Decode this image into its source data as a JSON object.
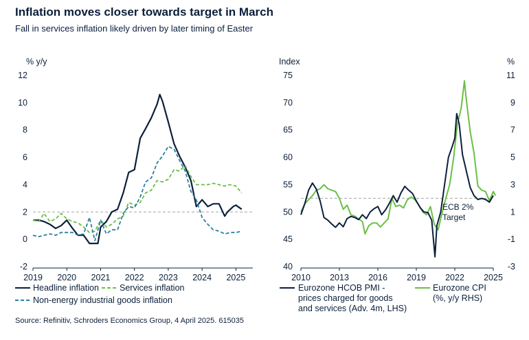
{
  "title": "Inflation moves closer towards target in March",
  "subtitle": "Fall in services inflation likely driven by later timing of Easter",
  "source": "Source: Refinitiv, Schroders Economics Group, 4 April 2025. 615035",
  "colors": {
    "navy": "#0b1f3a",
    "green": "#6abf45",
    "teal": "#2a7fa0",
    "gridline": "#b5b5b5"
  },
  "chart_data": [
    {
      "type": "line",
      "ylabel": "% y/y",
      "ylim": [
        -2,
        12
      ],
      "yticks": [
        -2,
        0,
        2,
        4,
        6,
        8,
        10,
        12
      ],
      "xlim": [
        2019,
        2025.5
      ],
      "xticks": [
        2019,
        2020,
        2021,
        2022,
        2023,
        2024,
        2025
      ],
      "reference_line": 2,
      "series": [
        {
          "name": "Headline inflation",
          "color": "#0b1f3a",
          "style": "solid",
          "x": [
            2019.0,
            2019.17,
            2019.33,
            2019.5,
            2019.67,
            2019.83,
            2020.0,
            2020.17,
            2020.33,
            2020.5,
            2020.67,
            2020.75,
            2020.92,
            2021.0,
            2021.17,
            2021.33,
            2021.5,
            2021.67,
            2021.83,
            2022.0,
            2022.17,
            2022.33,
            2022.5,
            2022.67,
            2022.75,
            2022.83,
            2023.0,
            2023.17,
            2023.33,
            2023.5,
            2023.67,
            2023.83,
            2024.0,
            2024.17,
            2024.33,
            2024.5,
            2024.67,
            2024.75,
            2024.92,
            2025.0,
            2025.17
          ],
          "values": [
            1.4,
            1.4,
            1.3,
            1.1,
            0.8,
            1.0,
            1.4,
            0.8,
            0.3,
            0.3,
            -0.3,
            -0.3,
            -0.3,
            0.9,
            1.3,
            2.0,
            2.2,
            3.4,
            4.9,
            5.1,
            7.4,
            8.1,
            8.9,
            9.9,
            10.6,
            10.1,
            8.6,
            7.0,
            6.1,
            5.3,
            4.3,
            2.4,
            2.9,
            2.4,
            2.6,
            2.6,
            1.7,
            2.0,
            2.4,
            2.5,
            2.2
          ]
        },
        {
          "name": "Services inflation",
          "color": "#6abf45",
          "style": "dashed",
          "x": [
            2019.0,
            2019.17,
            2019.33,
            2019.5,
            2019.67,
            2019.83,
            2020.0,
            2020.17,
            2020.33,
            2020.5,
            2020.67,
            2020.83,
            2021.0,
            2021.17,
            2021.33,
            2021.5,
            2021.67,
            2021.83,
            2022.0,
            2022.17,
            2022.33,
            2022.5,
            2022.67,
            2022.83,
            2023.0,
            2023.17,
            2023.33,
            2023.5,
            2023.67,
            2023.83,
            2024.0,
            2024.17,
            2024.33,
            2024.5,
            2024.67,
            2024.83,
            2025.0,
            2025.17
          ],
          "values": [
            1.4,
            1.3,
            1.9,
            1.3,
            1.5,
            1.9,
            1.5,
            1.3,
            1.2,
            0.9,
            0.5,
            0.6,
            1.4,
            0.9,
            1.1,
            1.5,
            1.7,
            2.7,
            2.5,
            2.7,
            3.4,
            3.6,
            4.3,
            4.2,
            4.4,
            5.1,
            5.0,
            5.4,
            4.6,
            4.0,
            4.0,
            4.0,
            4.1,
            4.0,
            3.9,
            4.0,
            3.9,
            3.4
          ]
        },
        {
          "name": "Non-energy industrial goods inflation",
          "color": "#2a7fa0",
          "style": "dashed",
          "x": [
            2019.0,
            2019.17,
            2019.33,
            2019.5,
            2019.67,
            2019.83,
            2020.0,
            2020.17,
            2020.33,
            2020.5,
            2020.67,
            2020.83,
            2021.0,
            2021.17,
            2021.33,
            2021.5,
            2021.67,
            2021.83,
            2022.0,
            2022.17,
            2022.33,
            2022.5,
            2022.67,
            2022.83,
            2023.0,
            2023.17,
            2023.33,
            2023.5,
            2023.67,
            2023.83,
            2024.0,
            2024.17,
            2024.33,
            2024.5,
            2024.67,
            2024.83,
            2025.0,
            2025.17
          ],
          "values": [
            0.3,
            0.2,
            0.3,
            0.4,
            0.3,
            0.5,
            0.5,
            0.5,
            0.3,
            0.4,
            1.6,
            -0.1,
            1.4,
            0.4,
            0.7,
            0.7,
            1.9,
            2.4,
            2.3,
            3.1,
            4.2,
            4.5,
            5.6,
            6.1,
            6.8,
            6.6,
            5.8,
            5.0,
            3.5,
            2.9,
            1.6,
            1.1,
            0.7,
            0.6,
            0.4,
            0.5,
            0.5,
            0.6
          ]
        }
      ]
    },
    {
      "type": "line",
      "ylabel": "Index",
      "ylabel_right": "%",
      "ylim": [
        40,
        75
      ],
      "yticks": [
        40,
        45,
        50,
        55,
        60,
        65,
        70,
        75
      ],
      "ylim_right": [
        -3,
        11
      ],
      "yticks_right": [
        -3,
        -1,
        1,
        3,
        5,
        7,
        9,
        11
      ],
      "xlim": [
        2010,
        2025
      ],
      "xticks": [
        2010,
        2013,
        2016,
        2019,
        2022,
        2025
      ],
      "reference_line_right": 2,
      "annotation": "ECB 2%\nTarget",
      "series": [
        {
          "name": "Eurozone HCOB PMI - prices charged for goods and services (Adv. 4m, LHS)",
          "color": "#0b1f3a",
          "axis": "left",
          "x": [
            2010.0,
            2010.3,
            2010.6,
            2010.9,
            2011.2,
            2011.5,
            2011.8,
            2012.1,
            2012.4,
            2012.7,
            2013.0,
            2013.3,
            2013.6,
            2013.9,
            2014.2,
            2014.5,
            2014.8,
            2015.1,
            2015.4,
            2015.7,
            2016.0,
            2016.3,
            2016.6,
            2016.9,
            2017.2,
            2017.5,
            2017.8,
            2018.1,
            2018.4,
            2018.7,
            2019.0,
            2019.3,
            2019.6,
            2019.9,
            2020.2,
            2020.45,
            2020.6,
            2020.9,
            2021.2,
            2021.5,
            2021.8,
            2022.0,
            2022.15,
            2022.35,
            2022.6,
            2022.9,
            2023.2,
            2023.5,
            2023.8,
            2024.1,
            2024.4,
            2024.7,
            2025.0
          ],
          "values": [
            49.5,
            51.5,
            54.0,
            55.3,
            54.2,
            52.0,
            49.0,
            48.5,
            47.8,
            47.2,
            48.0,
            47.3,
            48.8,
            49.2,
            49.0,
            48.6,
            49.5,
            48.8,
            50.0,
            50.6,
            51.0,
            49.5,
            50.4,
            51.6,
            53.0,
            51.8,
            53.5,
            54.7,
            54.0,
            53.4,
            52.0,
            50.8,
            50.0,
            49.9,
            48.5,
            41.8,
            47.5,
            50.0,
            55.0,
            60.0,
            62.0,
            63.5,
            68.0,
            66.0,
            60.5,
            57.5,
            54.5,
            53.0,
            52.3,
            52.5,
            52.3,
            51.8,
            53.0
          ]
        },
        {
          "name": "Eurozone CPI (%, y/y RHS)",
          "color": "#6abf45",
          "axis": "right",
          "x": [
            2010.0,
            2010.3,
            2010.6,
            2010.9,
            2011.2,
            2011.5,
            2011.8,
            2012.1,
            2012.4,
            2012.7,
            2013.0,
            2013.3,
            2013.6,
            2013.9,
            2014.2,
            2014.5,
            2014.8,
            2015.0,
            2015.3,
            2015.6,
            2015.9,
            2016.2,
            2016.5,
            2016.8,
            2017.1,
            2017.4,
            2017.7,
            2018.0,
            2018.3,
            2018.6,
            2018.9,
            2019.2,
            2019.5,
            2019.8,
            2020.1,
            2020.4,
            2020.7,
            2021.0,
            2021.3,
            2021.6,
            2021.9,
            2022.2,
            2022.5,
            2022.75,
            2022.9,
            2023.2,
            2023.5,
            2023.8,
            2024.1,
            2024.4,
            2024.7,
            2025.0,
            2025.17
          ],
          "values": [
            1.0,
            1.6,
            1.9,
            2.2,
            2.6,
            2.7,
            3.0,
            2.7,
            2.6,
            2.5,
            2.0,
            1.2,
            1.5,
            0.8,
            0.7,
            0.5,
            0.3,
            -0.6,
            0.0,
            0.2,
            0.2,
            -0.1,
            0.2,
            0.5,
            2.0,
            1.4,
            1.5,
            1.3,
            1.9,
            2.1,
            1.9,
            1.5,
            1.0,
            0.8,
            1.4,
            0.1,
            -0.3,
            0.9,
            2.0,
            3.0,
            4.9,
            7.4,
            8.6,
            10.6,
            9.2,
            6.9,
            5.3,
            2.9,
            2.6,
            2.5,
            1.8,
            2.5,
            2.2
          ]
        }
      ]
    }
  ]
}
